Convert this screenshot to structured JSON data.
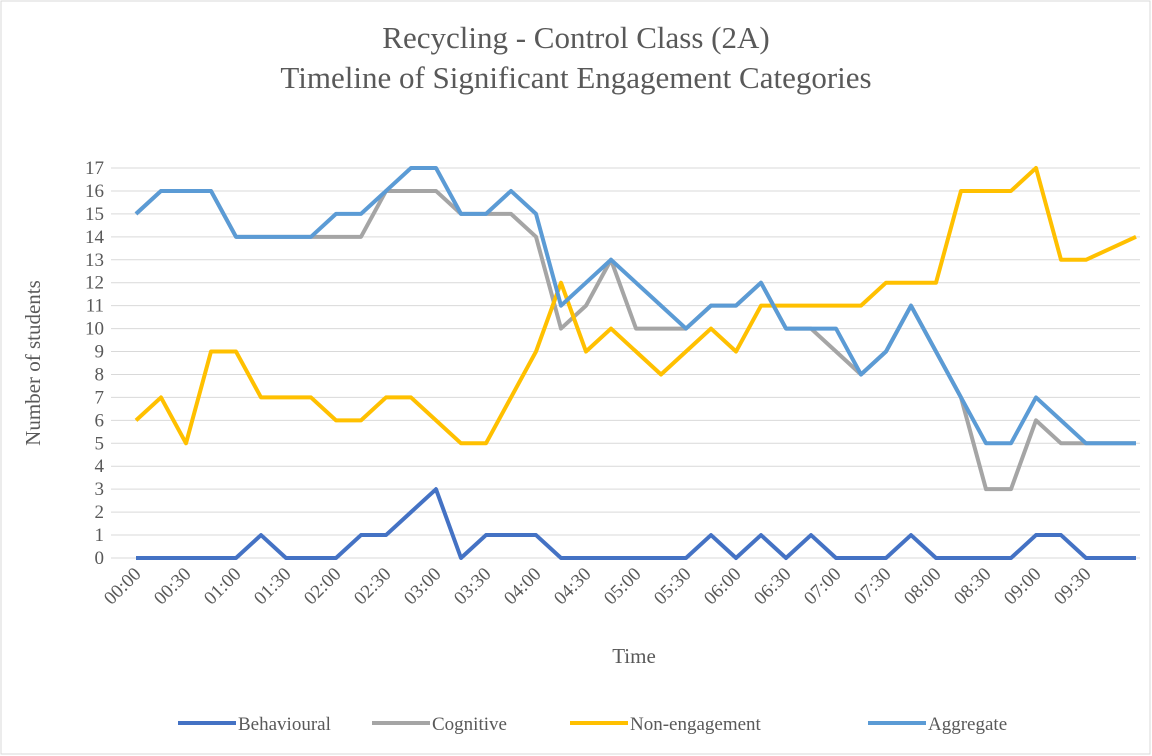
{
  "chart_data": {
    "type": "line",
    "title": "Recycling - Control Class (2A)",
    "subtitle": "Timeline of Significant Engagement Categories",
    "x_label": "Time",
    "y_label": "Number of students",
    "categories": [
      "00:00",
      null,
      "00:30",
      null,
      "01:00",
      null,
      "01:30",
      null,
      "02:00",
      null,
      "02:30",
      null,
      "03:00",
      null,
      "03:30",
      null,
      "04:00",
      null,
      "04:30",
      null,
      "05:00",
      null,
      "05:30",
      null,
      "06:00",
      null,
      "06:30",
      null,
      "07:00",
      null,
      "07:30",
      null,
      "08:00",
      null,
      "08:30",
      null,
      "09:00",
      null,
      "09:30",
      null,
      null
    ],
    "series": [
      {
        "name": "Behavioural",
        "color": "#4472c4",
        "values": [
          0,
          0,
          0,
          0,
          0,
          1,
          0,
          0,
          0,
          1,
          1,
          2,
          3,
          0,
          1,
          1,
          1,
          0,
          0,
          0,
          0,
          0,
          0,
          1,
          0,
          1,
          0,
          1,
          0,
          0,
          0,
          1,
          0,
          0,
          0,
          0,
          1,
          1,
          0,
          0,
          0
        ]
      },
      {
        "name": "Cognitive",
        "color": "#a5a5a5",
        "values": [
          15,
          16,
          16,
          16,
          14,
          14,
          14,
          14,
          14,
          14,
          16,
          16,
          16,
          15,
          15,
          15,
          14,
          10,
          11,
          13,
          10,
          10,
          10,
          11,
          11,
          12,
          10,
          10,
          9,
          8,
          9,
          11,
          9,
          7,
          3,
          3,
          6,
          5,
          5,
          5,
          5
        ]
      },
      {
        "name": "Non-engagement",
        "color": "#ffc000",
        "values": [
          6,
          7,
          5,
          9,
          9,
          7,
          7,
          7,
          6,
          6,
          7,
          7,
          6,
          5,
          5,
          7,
          9,
          12,
          9,
          10,
          9,
          8,
          9,
          10,
          9,
          11,
          11,
          11,
          11,
          11,
          12,
          12,
          12,
          16,
          16,
          16,
          17,
          13,
          13,
          13.5,
          14
        ]
      },
      {
        "name": "Aggregate",
        "color": "#5b9bd5",
        "values": [
          15,
          16,
          16,
          16,
          14,
          14,
          14,
          14,
          15,
          15,
          16,
          17,
          17,
          15,
          15,
          16,
          15,
          11,
          12,
          13,
          12,
          11,
          10,
          11,
          11,
          12,
          10,
          10,
          10,
          8,
          9,
          11,
          9,
          7,
          5,
          5,
          7,
          6,
          5,
          5,
          5
        ]
      }
    ],
    "ylim": [
      0,
      17
    ],
    "yticks": [
      0,
      1,
      2,
      3,
      4,
      5,
      6,
      7,
      8,
      9,
      10,
      11,
      12,
      13,
      14,
      15,
      16,
      17
    ],
    "grid": true,
    "legend": "bottom"
  }
}
